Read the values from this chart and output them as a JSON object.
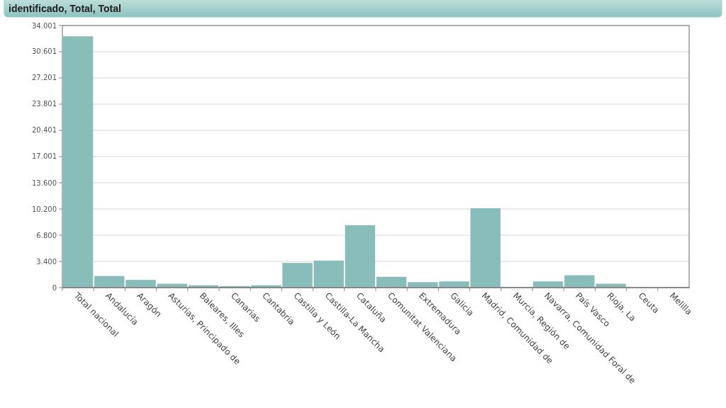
{
  "chart_data": {
    "type": "bar",
    "title": "identificado, Total, Total",
    "categories": [
      "Total nacional",
      "Andalucía",
      "Aragón",
      "Asturias, Principado de",
      "Baleares, Illes",
      "Canarias",
      "Cantabria",
      "Castilla y León",
      "Castilla-La Mancha",
      "Cataluña",
      "Comunitat Valenciana",
      "Extremadura",
      "Galicia",
      "Madrid, Comunidad de",
      "Murcia, Región de",
      "Navarra, Comunidad Foral de",
      "País Vasco",
      "Rioja, La",
      "Ceuta",
      "Melilla"
    ],
    "values": [
      32600,
      1500,
      1000,
      500,
      300,
      200,
      300,
      3200,
      3500,
      8100,
      1400,
      700,
      800,
      10300,
      null,
      800,
      1600,
      500,
      null,
      null
    ],
    "color": "#89bdb9",
    "ylim": [
      0,
      34001
    ],
    "yticks": [
      0,
      {
        "value": 3400,
        "label": "3.400"
      },
      {
        "value": 6800,
        "label": "6.800"
      },
      {
        "value": 10200,
        "label": "10.200"
      },
      {
        "value": 13600,
        "label": "13.600"
      },
      {
        "value": 17001,
        "label": "17.001"
      },
      {
        "value": 20401,
        "label": "20.401"
      },
      {
        "value": 23801,
        "label": "23.801"
      },
      {
        "value": 27201,
        "label": "27.201"
      },
      {
        "value": 30601,
        "label": "30.601"
      },
      {
        "value": 34001,
        "label": "34.001"
      }
    ],
    "grid": "y"
  }
}
